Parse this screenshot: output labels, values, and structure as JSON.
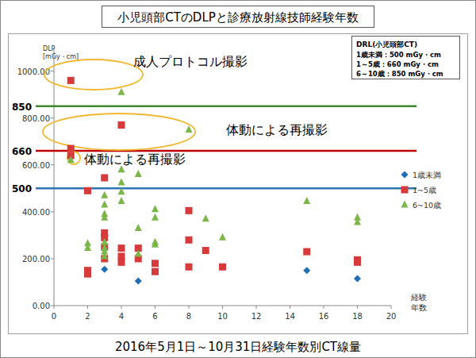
{
  "chart_data": {
    "type": "scatter",
    "title": "小児頭部CTのDLPと診療放射線技師経験年数",
    "subtitle": "2016年5月1日～10月31日経験年数別CT線量",
    "y_label": "DLP\n[mGy・cm]",
    "x_label": "経験\n年数",
    "xlim": [
      0,
      20
    ],
    "xticks": [
      0,
      2,
      4,
      6,
      8,
      10,
      12,
      14,
      16,
      18,
      20
    ],
    "ylim": [
      0,
      1100
    ],
    "yticks": [
      {
        "value": 0,
        "label": "0.00"
      },
      {
        "value": 200,
        "label": "200.00"
      },
      {
        "value": 400,
        "label": "400.00"
      },
      {
        "value": 600,
        "label": "600.00"
      },
      {
        "value": 800,
        "label": "800.00"
      },
      {
        "value": 1000,
        "label": "1000.00"
      }
    ],
    "grid": false,
    "legend": "right",
    "reference_lines": [
      {
        "value": 850,
        "label": "850",
        "color": "#3a8a2a"
      },
      {
        "value": 660,
        "label": "660",
        "color": "#c00000"
      },
      {
        "value": 500,
        "label": "500",
        "color": "#2e75b6"
      }
    ],
    "drl_box": {
      "title": "DRL(小児頭部CT)",
      "items": [
        "1歳未満：500 mGy・cm",
        "1～5歳：660 mGy・cm",
        "6～10歳：850 mGy・cm"
      ]
    },
    "annotations": [
      {
        "text": "成人プロトコル撮影"
      },
      {
        "text": "体動による再撮影"
      },
      {
        "text": "体動による再撮影"
      }
    ],
    "series": [
      {
        "name": "1歳未満",
        "color": "#1f6fb5",
        "marker": "diamond",
        "x": [
          3,
          5,
          15,
          18
        ],
        "values": [
          155,
          105,
          150,
          115
        ]
      },
      {
        "name": "1~5歳",
        "color": "#d63a3a",
        "marker": "square",
        "x": [
          1,
          1,
          1,
          2,
          2,
          2,
          3,
          3,
          3,
          3,
          3,
          4,
          4,
          4,
          4,
          5,
          5,
          6,
          6,
          8,
          8,
          8,
          9,
          10,
          15,
          18,
          18
        ],
        "values": [
          960,
          670,
          640,
          490,
          150,
          135,
          545,
          310,
          290,
          250,
          200,
          770,
          245,
          210,
          185,
          245,
          200,
          180,
          145,
          405,
          280,
          165,
          235,
          165,
          230,
          195,
          185
        ]
      },
      {
        "name": "6~10歳",
        "color": "#7ab648",
        "marker": "triangle",
        "x": [
          1,
          2,
          2,
          3,
          3,
          3,
          3,
          3,
          3,
          3,
          3,
          4,
          4,
          4,
          4,
          4,
          5,
          5,
          5,
          6,
          6,
          6,
          6,
          8,
          9,
          10,
          15,
          18,
          18
        ],
        "values": [
          620,
          265,
          245,
          470,
          430,
          390,
          375,
          270,
          245,
          230,
          210,
          910,
          580,
          525,
          485,
          445,
          560,
          330,
          220,
          410,
          375,
          270,
          260,
          750,
          370,
          290,
          445,
          375,
          355
        ]
      }
    ]
  }
}
